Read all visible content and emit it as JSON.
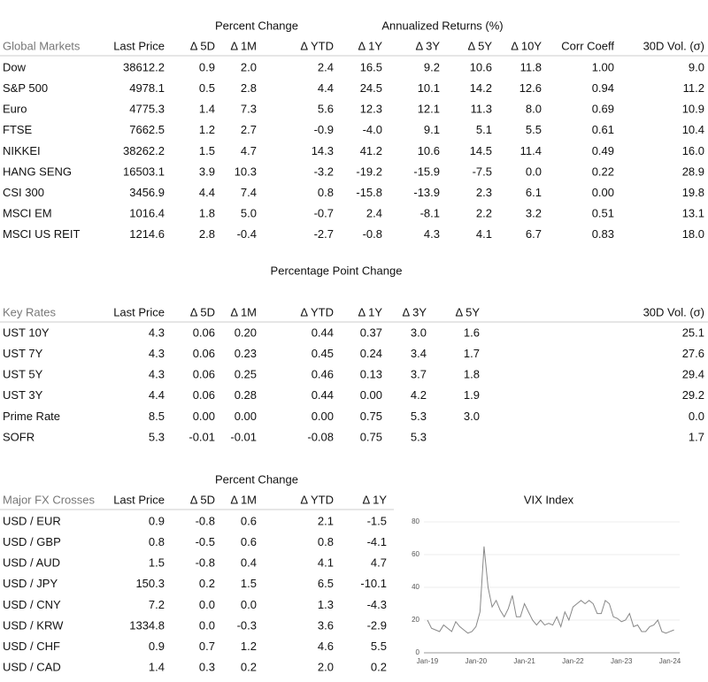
{
  "global_markets": {
    "group_headers": [
      "Percent Change",
      "Annualized Returns (%)"
    ],
    "columns": [
      "Global Markets",
      "Last Price",
      "Δ 5D",
      "Δ 1M",
      "Δ YTD",
      "Δ 1Y",
      "Δ 3Y",
      "Δ 5Y",
      "Δ 10Y",
      "Corr Coeff",
      "30D Vol. (σ)"
    ],
    "rows": [
      [
        "Dow",
        "38612.2",
        "0.9",
        "2.0",
        "2.4",
        "16.5",
        "9.2",
        "10.6",
        "11.8",
        "1.00",
        "9.0"
      ],
      [
        "S&P 500",
        "4978.1",
        "0.5",
        "2.8",
        "4.4",
        "24.5",
        "10.1",
        "14.2",
        "12.6",
        "0.94",
        "11.2"
      ],
      [
        "Euro",
        "4775.3",
        "1.4",
        "7.3",
        "5.6",
        "12.3",
        "12.1",
        "11.3",
        "8.0",
        "0.69",
        "10.9"
      ],
      [
        "FTSE",
        "7662.5",
        "1.2",
        "2.7",
        "-0.9",
        "-4.0",
        "9.1",
        "5.1",
        "5.5",
        "0.61",
        "10.4"
      ],
      [
        "NIKKEI",
        "38262.2",
        "1.5",
        "4.7",
        "14.3",
        "41.2",
        "10.6",
        "14.5",
        "11.4",
        "0.49",
        "16.0"
      ],
      [
        "HANG SENG",
        "16503.1",
        "3.9",
        "10.3",
        "-3.2",
        "-19.2",
        "-15.9",
        "-7.5",
        "0.0",
        "0.22",
        "28.9"
      ],
      [
        "CSI 300",
        "3456.9",
        "4.4",
        "7.4",
        "0.8",
        "-15.8",
        "-13.9",
        "2.3",
        "6.1",
        "0.00",
        "19.8"
      ],
      [
        "MSCI EM",
        "1016.4",
        "1.8",
        "5.0",
        "-0.7",
        "2.4",
        "-8.1",
        "2.2",
        "3.2",
        "0.51",
        "13.1"
      ],
      [
        "MSCI US REIT",
        "1214.6",
        "2.8",
        "-0.4",
        "-2.7",
        "-0.8",
        "4.3",
        "4.1",
        "6.7",
        "0.83",
        "18.0"
      ]
    ]
  },
  "key_rates": {
    "title": "Percentage Point Change",
    "columns": [
      "Key Rates",
      "Last Price",
      "Δ 5D",
      "Δ 1M",
      "Δ YTD",
      "Δ 1Y",
      "Δ 3Y",
      "Δ 5Y",
      "30D Vol. (σ)"
    ],
    "rows": [
      [
        "UST 10Y",
        "4.3",
        "0.06",
        "0.20",
        "0.44",
        "0.37",
        "3.0",
        "1.6",
        "25.1"
      ],
      [
        "UST 7Y",
        "4.3",
        "0.06",
        "0.23",
        "0.45",
        "0.24",
        "3.4",
        "1.7",
        "27.6"
      ],
      [
        "UST 5Y",
        "4.3",
        "0.06",
        "0.25",
        "0.46",
        "0.13",
        "3.7",
        "1.8",
        "29.4"
      ],
      [
        "UST 3Y",
        "4.4",
        "0.06",
        "0.28",
        "0.44",
        "0.00",
        "4.2",
        "1.9",
        "29.2"
      ],
      [
        "Prime Rate",
        "8.5",
        "0.00",
        "0.00",
        "0.00",
        "0.75",
        "5.3",
        "3.0",
        "0.0"
      ],
      [
        "SOFR",
        "5.3",
        "-0.01",
        "-0.01",
        "-0.08",
        "0.75",
        "5.3",
        null,
        "1.7"
      ]
    ]
  },
  "fx_crosses": {
    "group_headers": [
      "Percent Change"
    ],
    "columns": [
      "Major FX Crosses",
      "Last Price",
      "Δ 5D",
      "Δ 1M",
      "Δ YTD",
      "Δ 1Y"
    ],
    "rows": [
      [
        "USD / EUR",
        "0.9",
        "-0.8",
        "0.6",
        "2.1",
        "-1.5"
      ],
      [
        "USD / GBP",
        "0.8",
        "-0.5",
        "0.6",
        "0.8",
        "-4.1"
      ],
      [
        "USD / AUD",
        "1.5",
        "-0.8",
        "0.4",
        "4.1",
        "4.7"
      ],
      [
        "USD / JPY",
        "150.3",
        "0.2",
        "1.5",
        "6.5",
        "-10.1"
      ],
      [
        "USD / CNY",
        "7.2",
        "0.0",
        "0.0",
        "1.3",
        "-4.3"
      ],
      [
        "USD / KRW",
        "1334.8",
        "0.0",
        "-0.3",
        "3.6",
        "-2.9"
      ],
      [
        "USD / CHF",
        "0.9",
        "0.7",
        "1.2",
        "4.6",
        "5.5"
      ],
      [
        "USD / CAD",
        "1.4",
        "0.3",
        "0.2",
        "2.0",
        "0.2"
      ]
    ]
  },
  "chart_data": {
    "type": "line",
    "title": "VIX Index",
    "color": "#888888",
    "categories": [
      "Jan-19",
      null,
      null,
      null,
      null,
      null,
      null,
      null,
      null,
      null,
      null,
      null,
      "Jan-20",
      null,
      null,
      null,
      null,
      null,
      null,
      null,
      null,
      null,
      null,
      null,
      "Jan-21",
      null,
      null,
      null,
      null,
      null,
      null,
      null,
      null,
      null,
      null,
      null,
      "Jan-22",
      null,
      null,
      null,
      null,
      null,
      null,
      null,
      null,
      null,
      null,
      null,
      "Jan-23",
      null,
      null,
      null,
      null,
      null,
      null,
      null,
      null,
      null,
      null,
      null,
      "Jan-24",
      null
    ],
    "values": [
      20,
      15,
      14,
      13,
      17,
      15,
      13,
      19,
      16,
      14,
      12,
      13,
      16,
      25,
      65,
      40,
      28,
      32,
      26,
      22,
      27,
      35,
      22,
      22,
      30,
      25,
      20,
      17,
      20,
      17,
      18,
      17,
      22,
      16,
      25,
      20,
      28,
      30,
      32,
      30,
      32,
      30,
      24,
      24,
      32,
      30,
      22,
      21,
      19,
      20,
      24,
      16,
      17,
      13,
      13,
      16,
      17,
      20,
      13,
      12,
      13,
      14
    ],
    "ylim": [
      0,
      80
    ],
    "yticks": [
      0,
      20,
      40,
      60,
      80
    ]
  }
}
